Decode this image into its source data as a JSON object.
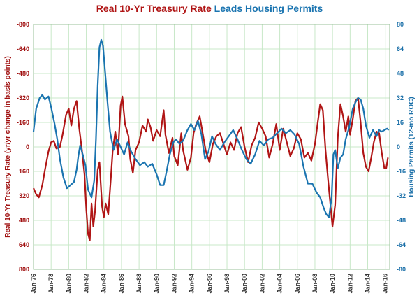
{
  "chart_data": {
    "type": "line",
    "title_part1": "Real 10-Yr Treasury Rate",
    "title_part2": "Leads Housing Permits",
    "ylabel_left": "Real 10-Yr Treasury Rate (yr/yr change in basis points)",
    "ylabel_right": "Housing Permits (12-mo ROC)",
    "left_axis": {
      "min": -800,
      "max": 800,
      "inverted": true,
      "ticks": [
        -800,
        -640,
        -480,
        -320,
        -160,
        0,
        160,
        320,
        480,
        640,
        800
      ]
    },
    "right_axis": {
      "min": -80,
      "max": 80,
      "ticks": [
        80,
        64,
        48,
        32,
        16,
        0,
        -16,
        -32,
        -48,
        -64,
        -80
      ]
    },
    "x_range": [
      1976,
      2016.5
    ],
    "x_ticks": [
      "Jan-76",
      "Jan-78",
      "Jan-80",
      "Jan-82",
      "Jan-84",
      "Jan-86",
      "Jan-88",
      "Jan-90",
      "Jan-92",
      "Jan-94",
      "Jan-96",
      "Jan-98",
      "Jan-00",
      "Jan-02",
      "Jan-04",
      "Jan-06",
      "Jan-08",
      "Jan-10",
      "Jan-12",
      "Jan-14",
      "Jan-16"
    ],
    "grid": true,
    "colors": {
      "treasury": "#B01515",
      "permits": "#1A74B0",
      "grid": "#C8E8C8"
    },
    "series": [
      {
        "key": "treasury",
        "axis": "left",
        "points": [
          [
            1976.0,
            270
          ],
          [
            1976.3,
            310
          ],
          [
            1976.6,
            330
          ],
          [
            1977.0,
            250
          ],
          [
            1977.3,
            150
          ],
          [
            1977.7,
            30
          ],
          [
            1978.0,
            -30
          ],
          [
            1978.3,
            -40
          ],
          [
            1978.6,
            10
          ],
          [
            1979.0,
            0
          ],
          [
            1979.3,
            -80
          ],
          [
            1979.7,
            -210
          ],
          [
            1980.0,
            -250
          ],
          [
            1980.3,
            -140
          ],
          [
            1980.6,
            -250
          ],
          [
            1980.9,
            -300
          ],
          [
            1981.2,
            -120
          ],
          [
            1981.5,
            20
          ],
          [
            1981.8,
            180
          ],
          [
            1982.0,
            410
          ],
          [
            1982.2,
            570
          ],
          [
            1982.4,
            610
          ],
          [
            1982.6,
            370
          ],
          [
            1982.8,
            520
          ],
          [
            1983.0,
            420
          ],
          [
            1983.3,
            150
          ],
          [
            1983.5,
            100
          ],
          [
            1983.8,
            390
          ],
          [
            1984.0,
            460
          ],
          [
            1984.2,
            370
          ],
          [
            1984.5,
            440
          ],
          [
            1984.8,
            200
          ],
          [
            1985.0,
            30
          ],
          [
            1985.3,
            -100
          ],
          [
            1985.6,
            50
          ],
          [
            1985.9,
            -270
          ],
          [
            1986.1,
            -330
          ],
          [
            1986.4,
            -150
          ],
          [
            1986.8,
            -70
          ],
          [
            1987.0,
            80
          ],
          [
            1987.3,
            170
          ],
          [
            1987.6,
            20
          ],
          [
            1988.0,
            -30
          ],
          [
            1988.4,
            -140
          ],
          [
            1988.8,
            -100
          ],
          [
            1989.0,
            -180
          ],
          [
            1989.3,
            -130
          ],
          [
            1989.6,
            -40
          ],
          [
            1990.0,
            -110
          ],
          [
            1990.4,
            -70
          ],
          [
            1990.8,
            -240
          ],
          [
            1991.0,
            -80
          ],
          [
            1991.4,
            40
          ],
          [
            1991.8,
            -60
          ],
          [
            1992.0,
            60
          ],
          [
            1992.4,
            120
          ],
          [
            1992.8,
            -90
          ],
          [
            1993.0,
            20
          ],
          [
            1993.5,
            150
          ],
          [
            1993.9,
            70
          ],
          [
            1994.2,
            -90
          ],
          [
            1994.5,
            -150
          ],
          [
            1994.9,
            -200
          ],
          [
            1995.2,
            -100
          ],
          [
            1995.6,
            30
          ],
          [
            1996.0,
            100
          ],
          [
            1996.4,
            -20
          ],
          [
            1996.8,
            -70
          ],
          [
            1997.2,
            -90
          ],
          [
            1997.6,
            -20
          ],
          [
            1998.0,
            50
          ],
          [
            1998.4,
            -30
          ],
          [
            1998.8,
            20
          ],
          [
            1999.2,
            -90
          ],
          [
            1999.6,
            -130
          ],
          [
            2000.0,
            0
          ],
          [
            2000.4,
            100
          ],
          [
            2000.8,
            -10
          ],
          [
            2001.2,
            -60
          ],
          [
            2001.6,
            -160
          ],
          [
            2002.0,
            -120
          ],
          [
            2002.4,
            -70
          ],
          [
            2002.8,
            70
          ],
          [
            2003.2,
            -20
          ],
          [
            2003.6,
            -150
          ],
          [
            2004.0,
            20
          ],
          [
            2004.4,
            -120
          ],
          [
            2004.8,
            -30
          ],
          [
            2005.2,
            60
          ],
          [
            2005.6,
            10
          ],
          [
            2006.0,
            -90
          ],
          [
            2006.4,
            -50
          ],
          [
            2006.8,
            70
          ],
          [
            2007.2,
            40
          ],
          [
            2007.6,
            90
          ],
          [
            2008.0,
            -20
          ],
          [
            2008.3,
            -150
          ],
          [
            2008.6,
            -280
          ],
          [
            2008.9,
            -240
          ],
          [
            2009.2,
            20
          ],
          [
            2009.5,
            220
          ],
          [
            2009.8,
            400
          ],
          [
            2010.0,
            520
          ],
          [
            2010.3,
            380
          ],
          [
            2010.6,
            -60
          ],
          [
            2010.9,
            -280
          ],
          [
            2011.2,
            -200
          ],
          [
            2011.5,
            -100
          ],
          [
            2011.8,
            -200
          ],
          [
            2012.0,
            -80
          ],
          [
            2012.3,
            -180
          ],
          [
            2012.6,
            -300
          ],
          [
            2012.9,
            -320
          ],
          [
            2013.2,
            -160
          ],
          [
            2013.5,
            40
          ],
          [
            2013.8,
            130
          ],
          [
            2014.1,
            160
          ],
          [
            2014.4,
            70
          ],
          [
            2014.7,
            -30
          ],
          [
            2015.0,
            -100
          ],
          [
            2015.3,
            -90
          ],
          [
            2015.6,
            40
          ],
          [
            2015.9,
            140
          ],
          [
            2016.1,
            140
          ],
          [
            2016.3,
            70
          ]
        ]
      },
      {
        "key": "permits",
        "axis": "right",
        "points": [
          [
            1976.0,
            10
          ],
          [
            1976.3,
            25
          ],
          [
            1976.7,
            32
          ],
          [
            1977.0,
            34
          ],
          [
            1977.3,
            31
          ],
          [
            1977.7,
            33
          ],
          [
            1978.0,
            26
          ],
          [
            1978.4,
            15
          ],
          [
            1978.7,
            5
          ],
          [
            1979.0,
            -8
          ],
          [
            1979.4,
            -20
          ],
          [
            1979.8,
            -27
          ],
          [
            1980.2,
            -25
          ],
          [
            1980.6,
            -23
          ],
          [
            1980.9,
            -15
          ],
          [
            1981.1,
            -6
          ],
          [
            1981.3,
            1
          ],
          [
            1981.6,
            -5
          ],
          [
            1981.9,
            -12
          ],
          [
            1982.2,
            -28
          ],
          [
            1982.6,
            -33
          ],
          [
            1982.9,
            -22
          ],
          [
            1983.1,
            5
          ],
          [
            1983.3,
            40
          ],
          [
            1983.5,
            65
          ],
          [
            1983.7,
            70
          ],
          [
            1983.9,
            66
          ],
          [
            1984.1,
            52
          ],
          [
            1984.4,
            30
          ],
          [
            1984.7,
            10
          ],
          [
            1985.1,
            -2
          ],
          [
            1985.5,
            5
          ],
          [
            1985.9,
            0
          ],
          [
            1986.3,
            -5
          ],
          [
            1986.7,
            3
          ],
          [
            1987.1,
            -3
          ],
          [
            1987.6,
            -8
          ],
          [
            1988.1,
            -12
          ],
          [
            1988.6,
            -10
          ],
          [
            1989.0,
            -13
          ],
          [
            1989.5,
            -11
          ],
          [
            1990.0,
            -18
          ],
          [
            1990.4,
            -25
          ],
          [
            1990.8,
            -25
          ],
          [
            1991.1,
            -17
          ],
          [
            1991.5,
            -5
          ],
          [
            1991.9,
            3
          ],
          [
            1992.2,
            5
          ],
          [
            1992.6,
            2
          ],
          [
            1993.0,
            4
          ],
          [
            1993.5,
            11
          ],
          [
            1993.9,
            15
          ],
          [
            1994.3,
            11
          ],
          [
            1994.7,
            17
          ],
          [
            1995.1,
            8
          ],
          [
            1995.5,
            -8
          ],
          [
            1995.9,
            -3
          ],
          [
            1996.3,
            7
          ],
          [
            1996.7,
            2
          ],
          [
            1997.2,
            -2
          ],
          [
            1997.7,
            3
          ],
          [
            1998.2,
            7
          ],
          [
            1998.7,
            11
          ],
          [
            1999.2,
            5
          ],
          [
            1999.7,
            -2
          ],
          [
            2000.2,
            -8
          ],
          [
            2000.7,
            -11
          ],
          [
            2001.2,
            -5
          ],
          [
            2001.7,
            4
          ],
          [
            2002.2,
            1
          ],
          [
            2002.7,
            5
          ],
          [
            2003.2,
            6
          ],
          [
            2003.7,
            9
          ],
          [
            2004.2,
            12
          ],
          [
            2004.7,
            9
          ],
          [
            2005.2,
            11
          ],
          [
            2005.7,
            8
          ],
          [
            2006.2,
            2
          ],
          [
            2006.7,
            -13
          ],
          [
            2007.2,
            -24
          ],
          [
            2007.7,
            -24
          ],
          [
            2008.2,
            -30
          ],
          [
            2008.6,
            -33
          ],
          [
            2009.0,
            -40
          ],
          [
            2009.3,
            -44
          ],
          [
            2009.6,
            -46
          ],
          [
            2009.9,
            -33
          ],
          [
            2010.1,
            -5
          ],
          [
            2010.3,
            -2
          ],
          [
            2010.6,
            -14
          ],
          [
            2010.9,
            -7
          ],
          [
            2011.2,
            -5
          ],
          [
            2011.5,
            5
          ],
          [
            2011.9,
            13
          ],
          [
            2012.3,
            25
          ],
          [
            2012.6,
            29
          ],
          [
            2012.9,
            32
          ],
          [
            2013.2,
            31
          ],
          [
            2013.5,
            25
          ],
          [
            2013.8,
            14
          ],
          [
            2014.2,
            6
          ],
          [
            2014.6,
            11
          ],
          [
            2015.0,
            7
          ],
          [
            2015.3,
            11
          ],
          [
            2015.6,
            10
          ],
          [
            2015.9,
            11
          ],
          [
            2016.2,
            12
          ],
          [
            2016.4,
            11
          ]
        ]
      }
    ]
  }
}
